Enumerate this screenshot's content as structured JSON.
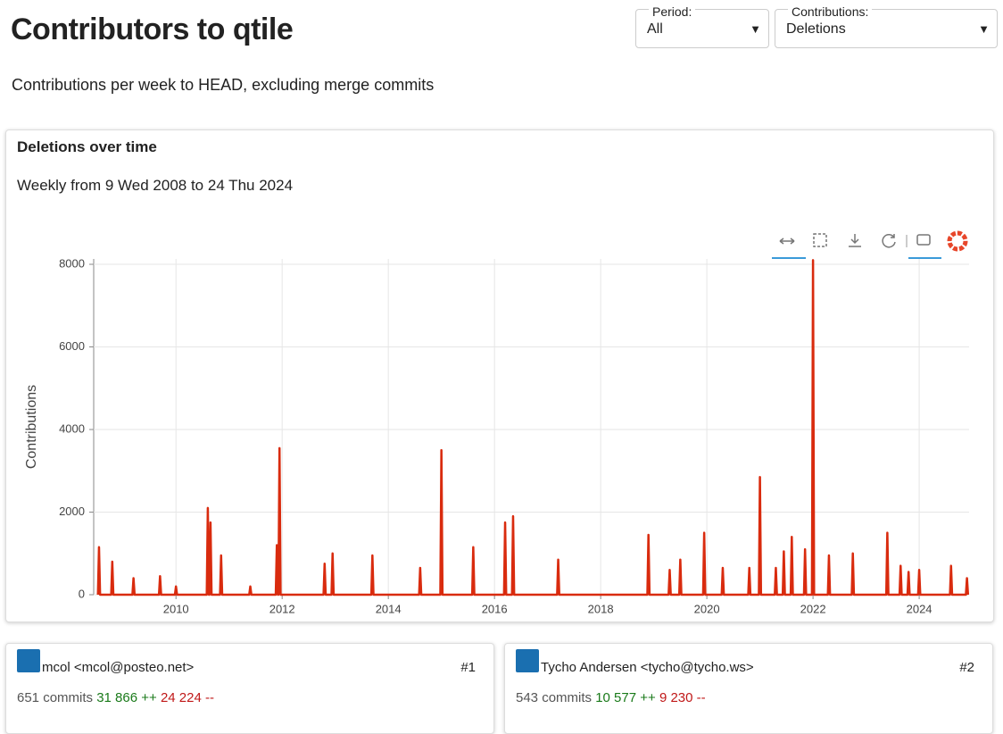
{
  "header": {
    "title": "Contributors to qtile",
    "subtitle": "Contributions per week to HEAD, excluding merge commits"
  },
  "controls": {
    "period_label": "Period:",
    "period_value": "All",
    "contrib_label": "Contributions:",
    "contrib_value": "Deletions"
  },
  "chart_card": {
    "title": "Deletions over time",
    "subtitle": "Weekly from 9 Wed 2008 to 24 Thu 2024"
  },
  "chart_data": {
    "type": "line",
    "y_label": "Contributions",
    "xlim": [
      2008.45,
      2024.94
    ],
    "ylim": [
      0,
      8130
    ],
    "xticks": [
      2010,
      2012,
      2014,
      2016,
      2018,
      2020,
      2022,
      2024
    ],
    "yticks": [
      0,
      2000,
      4000,
      6000,
      8000
    ],
    "grid": true,
    "x": [
      2008.53,
      2008.55,
      2008.57,
      2008.78,
      2008.8,
      2008.82,
      2009.18,
      2009.2,
      2009.22,
      2009.68,
      2009.7,
      2009.72,
      2009.98,
      2010.0,
      2010.02,
      2010.58,
      2010.6,
      2010.62,
      2010.63,
      2010.65,
      2010.67,
      2010.83,
      2010.85,
      2010.87,
      2011.38,
      2011.4,
      2011.42,
      2011.88,
      2011.9,
      2011.92,
      2011.93,
      2011.95,
      2011.97,
      2012.78,
      2012.8,
      2012.82,
      2012.93,
      2012.95,
      2012.97,
      2013.68,
      2013.7,
      2013.72,
      2014.58,
      2014.6,
      2014.62,
      2014.98,
      2015.0,
      2015.02,
      2015.58,
      2015.6,
      2015.62,
      2016.18,
      2016.2,
      2016.22,
      2016.33,
      2016.35,
      2016.37,
      2017.18,
      2017.2,
      2017.22,
      2018.88,
      2018.9,
      2018.92,
      2019.28,
      2019.3,
      2019.32,
      2019.48,
      2019.5,
      2019.52,
      2019.93,
      2019.95,
      2019.97,
      2020.28,
      2020.3,
      2020.32,
      2020.78,
      2020.8,
      2020.82,
      2020.98,
      2021.0,
      2021.02,
      2021.28,
      2021.3,
      2021.32,
      2021.43,
      2021.45,
      2021.47,
      2021.58,
      2021.6,
      2021.62,
      2021.83,
      2021.85,
      2021.87,
      2021.98,
      2022.0,
      2022.02,
      2022.28,
      2022.3,
      2022.32,
      2022.73,
      2022.75,
      2022.77,
      2023.38,
      2023.4,
      2023.42,
      2023.63,
      2023.65,
      2023.67,
      2023.78,
      2023.8,
      2023.82,
      2023.98,
      2024.0,
      2024.02,
      2024.58,
      2024.6,
      2024.62,
      2024.88,
      2024.9,
      2024.92
    ],
    "series": [
      {
        "name": "Deletions",
        "color": "#d92b0e",
        "values": [
          0,
          1150,
          0,
          0,
          800,
          0,
          0,
          400,
          0,
          0,
          450,
          0,
          0,
          200,
          0,
          0,
          2100,
          0,
          0,
          1750,
          0,
          0,
          950,
          0,
          0,
          200,
          0,
          0,
          1200,
          0,
          0,
          3550,
          0,
          0,
          750,
          0,
          0,
          1000,
          0,
          0,
          950,
          0,
          0,
          650,
          0,
          0,
          3500,
          0,
          0,
          1150,
          0,
          0,
          1750,
          0,
          0,
          1900,
          0,
          0,
          850,
          0,
          0,
          1450,
          0,
          0,
          600,
          0,
          0,
          850,
          0,
          0,
          1500,
          0,
          0,
          650,
          0,
          0,
          650,
          0,
          0,
          2850,
          0,
          0,
          650,
          0,
          0,
          1050,
          0,
          0,
          1400,
          0,
          0,
          1100,
          0,
          0,
          8100,
          0,
          0,
          950,
          0,
          0,
          1000,
          0,
          0,
          1500,
          0,
          0,
          700,
          0,
          0,
          550,
          0,
          0,
          600,
          0,
          0,
          700,
          0,
          0,
          400,
          0
        ]
      }
    ]
  },
  "contributors": [
    {
      "name": "mcol <mcol@posteo.net>",
      "rank": "#1",
      "commits": "651 commits",
      "additions": "31 866 ++",
      "deletions": "24 224 --"
    },
    {
      "name": "Tycho Andersen <tycho@tycho.ws>",
      "rank": "#2",
      "commits": "543 commits",
      "additions": "10 577 ++",
      "deletions": "9 230 --"
    }
  ]
}
